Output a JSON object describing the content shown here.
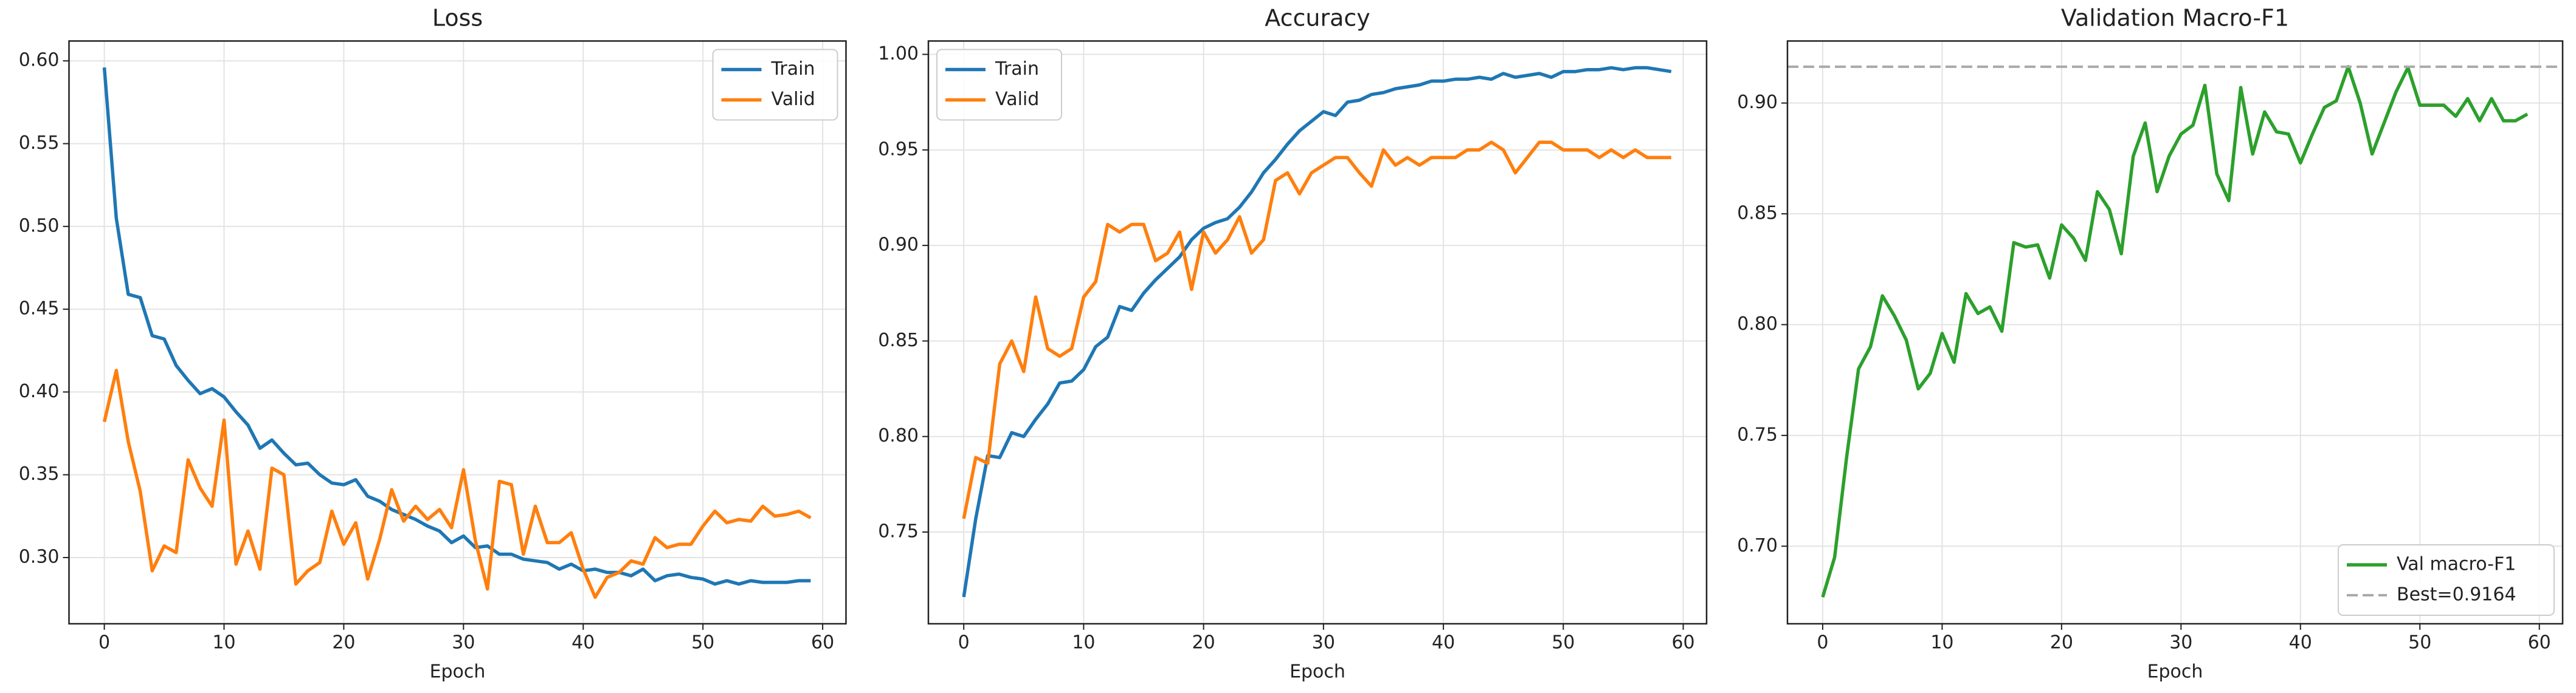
{
  "chart_data": [
    {
      "type": "line",
      "title": "Loss",
      "xlabel": "Epoch",
      "x": [
        0,
        1,
        2,
        3,
        4,
        5,
        6,
        7,
        8,
        9,
        10,
        11,
        12,
        13,
        14,
        15,
        16,
        17,
        18,
        19,
        20,
        21,
        22,
        23,
        24,
        25,
        26,
        27,
        28,
        29,
        30,
        31,
        32,
        33,
        34,
        35,
        36,
        37,
        38,
        39,
        40,
        41,
        42,
        43,
        44,
        45,
        46,
        47,
        48,
        49,
        50,
        51,
        52,
        53,
        54,
        55,
        56,
        57,
        58,
        59
      ],
      "series": [
        {
          "name": "Train",
          "color": "#1f77b4",
          "values": [
            0.596,
            0.505,
            0.459,
            0.457,
            0.434,
            0.432,
            0.416,
            0.407,
            0.399,
            0.402,
            0.397,
            0.388,
            0.38,
            0.366,
            0.371,
            0.363,
            0.356,
            0.357,
            0.35,
            0.345,
            0.344,
            0.347,
            0.337,
            0.334,
            0.329,
            0.326,
            0.323,
            0.319,
            0.316,
            0.309,
            0.313,
            0.306,
            0.307,
            0.302,
            0.302,
            0.299,
            0.298,
            0.297,
            0.293,
            0.296,
            0.292,
            0.293,
            0.291,
            0.291,
            0.289,
            0.293,
            0.286,
            0.289,
            0.29,
            0.288,
            0.287,
            0.284,
            0.286,
            0.284,
            0.286,
            0.285,
            0.285,
            0.285,
            0.286,
            0.286
          ]
        },
        {
          "name": "Valid",
          "color": "#ff7f0e",
          "values": [
            0.382,
            0.413,
            0.37,
            0.34,
            0.292,
            0.307,
            0.303,
            0.359,
            0.342,
            0.331,
            0.383,
            0.296,
            0.316,
            0.293,
            0.354,
            0.35,
            0.284,
            0.292,
            0.297,
            0.328,
            0.308,
            0.321,
            0.287,
            0.311,
            0.341,
            0.322,
            0.331,
            0.323,
            0.329,
            0.318,
            0.353,
            0.31,
            0.281,
            0.346,
            0.344,
            0.302,
            0.331,
            0.309,
            0.309,
            0.315,
            0.293,
            0.276,
            0.288,
            0.291,
            0.298,
            0.296,
            0.312,
            0.306,
            0.308,
            0.308,
            0.319,
            0.328,
            0.321,
            0.323,
            0.322,
            0.331,
            0.325,
            0.326,
            0.328,
            0.324
          ]
        }
      ],
      "xlim": [
        -2.95,
        61.95
      ],
      "xticks": [
        0,
        10,
        20,
        30,
        40,
        50,
        60
      ],
      "ylim": [
        0.26,
        0.612
      ],
      "yticks": [
        {
          "value": 0.3,
          "label": "0.30"
        },
        0.35,
        {
          "value": 0.4,
          "label": "0.40"
        },
        0.45,
        {
          "value": 0.5,
          "label": "0.50"
        },
        0.55,
        {
          "value": 0.6,
          "label": "0.60"
        }
      ],
      "grid": true,
      "legend": "upper right"
    },
    {
      "type": "line",
      "title": "Accuracy",
      "xlabel": "Epoch",
      "x": [
        0,
        1,
        2,
        3,
        4,
        5,
        6,
        7,
        8,
        9,
        10,
        11,
        12,
        13,
        14,
        15,
        16,
        17,
        18,
        19,
        20,
        21,
        22,
        23,
        24,
        25,
        26,
        27,
        28,
        29,
        30,
        31,
        32,
        33,
        34,
        35,
        36,
        37,
        38,
        39,
        40,
        41,
        42,
        43,
        44,
        45,
        46,
        47,
        48,
        49,
        50,
        51,
        52,
        53,
        54,
        55,
        56,
        57,
        58,
        59
      ],
      "series": [
        {
          "name": "Train",
          "color": "#1f77b4",
          "values": [
            0.716,
            0.757,
            0.79,
            0.789,
            0.802,
            0.8,
            0.809,
            0.817,
            0.828,
            0.829,
            0.835,
            0.847,
            0.852,
            0.868,
            0.866,
            0.875,
            0.882,
            0.888,
            0.894,
            0.903,
            0.909,
            0.912,
            0.914,
            0.92,
            0.928,
            0.938,
            0.945,
            0.953,
            0.96,
            0.965,
            0.97,
            0.968,
            0.975,
            0.976,
            0.979,
            0.98,
            0.982,
            0.983,
            0.984,
            0.986,
            0.986,
            0.987,
            0.987,
            0.988,
            0.987,
            0.99,
            0.988,
            0.989,
            0.99,
            0.988,
            0.991,
            0.991,
            0.992,
            0.992,
            0.993,
            0.992,
            0.993,
            0.993,
            0.992,
            0.991
          ]
        },
        {
          "name": "Valid",
          "color": "#ff7f0e",
          "values": [
            0.757,
            0.789,
            0.786,
            0.838,
            0.85,
            0.834,
            0.873,
            0.846,
            0.842,
            0.846,
            0.873,
            0.881,
            0.911,
            0.907,
            0.911,
            0.911,
            0.892,
            0.896,
            0.907,
            0.877,
            0.907,
            0.896,
            0.903,
            0.915,
            0.896,
            0.903,
            0.934,
            0.938,
            0.927,
            0.938,
            0.942,
            0.946,
            0.946,
            0.938,
            0.931,
            0.95,
            0.942,
            0.946,
            0.942,
            0.946,
            0.946,
            0.946,
            0.95,
            0.95,
            0.954,
            0.95,
            0.938,
            0.946,
            0.954,
            0.954,
            0.95,
            0.95,
            0.95,
            0.946,
            0.95,
            0.946,
            0.95,
            0.946,
            0.946,
            0.946
          ]
        }
      ],
      "xlim": [
        -2.95,
        61.95
      ],
      "xticks": [
        0,
        10,
        20,
        30,
        40,
        50,
        60
      ],
      "ylim": [
        0.702,
        1.007
      ],
      "yticks": [
        0.75,
        {
          "value": 0.8,
          "label": "0.80"
        },
        0.85,
        {
          "value": 0.9,
          "label": "0.90"
        },
        0.95,
        {
          "value": 1,
          "label": "1.00"
        }
      ],
      "grid": true,
      "legend": "upper left"
    },
    {
      "type": "line",
      "title": "Validation Macro-F1",
      "xlabel": "Epoch",
      "x": [
        0,
        1,
        2,
        3,
        4,
        5,
        6,
        7,
        8,
        9,
        10,
        11,
        12,
        13,
        14,
        15,
        16,
        17,
        18,
        19,
        20,
        21,
        22,
        23,
        24,
        25,
        26,
        27,
        28,
        29,
        30,
        31,
        32,
        33,
        34,
        35,
        36,
        37,
        38,
        39,
        40,
        41,
        42,
        43,
        44,
        45,
        46,
        47,
        48,
        49,
        50,
        51,
        52,
        53,
        54,
        55,
        56,
        57,
        58,
        59
      ],
      "series": [
        {
          "name": "Val macro-F1",
          "color": "#2ca02c",
          "values": [
            0.677,
            0.695,
            0.74,
            0.78,
            0.79,
            0.813,
            0.804,
            0.793,
            0.771,
            0.778,
            0.796,
            0.783,
            0.814,
            0.805,
            0.808,
            0.797,
            0.837,
            0.835,
            0.836,
            0.821,
            0.845,
            0.839,
            0.829,
            0.86,
            0.852,
            0.832,
            0.876,
            0.891,
            0.86,
            0.876,
            0.886,
            0.89,
            0.908,
            0.868,
            0.856,
            0.907,
            0.877,
            0.896,
            0.887,
            0.886,
            0.873,
            0.886,
            0.898,
            0.901,
            0.9164,
            0.9,
            0.877,
            0.891,
            0.905,
            0.916,
            0.899,
            0.899,
            0.899,
            0.894,
            0.902,
            0.892,
            0.902,
            0.892,
            0.892,
            0.895
          ]
        }
      ],
      "hline": {
        "value": 0.9164,
        "label": "Best=0.9164",
        "color": "#aaaaaa"
      },
      "xlim": [
        -2.95,
        61.95
      ],
      "xticks": [
        0,
        10,
        20,
        30,
        40,
        50,
        60
      ],
      "ylim": [
        0.665,
        0.928
      ],
      "yticks": [
        {
          "value": 0.7,
          "label": "0.70"
        },
        0.75,
        {
          "value": 0.8,
          "label": "0.80"
        },
        0.85,
        {
          "value": 0.9,
          "label": "0.90"
        }
      ],
      "grid": true,
      "legend": "lower right"
    }
  ]
}
